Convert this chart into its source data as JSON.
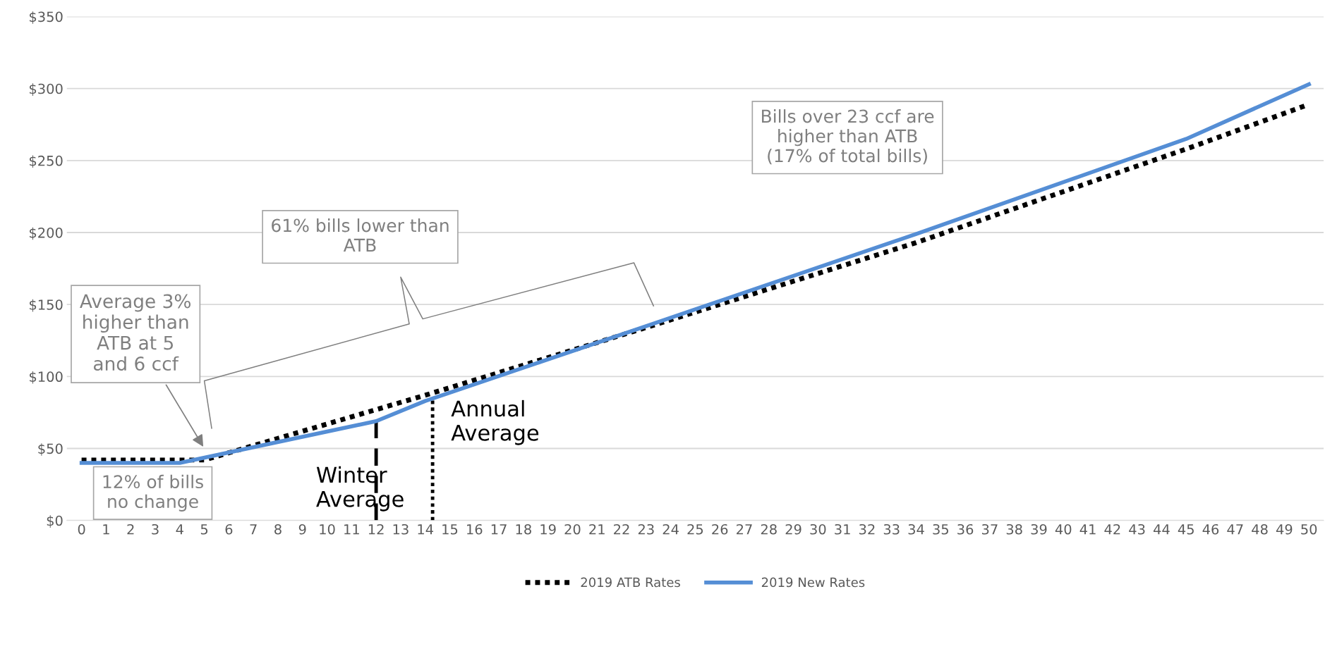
{
  "chart_data": {
    "type": "line",
    "series": [
      {
        "name": "2019 ATB Rates",
        "color": "#000000",
        "line_style": "dotted",
        "x": [
          0,
          5,
          8,
          12,
          14,
          23,
          34,
          45,
          50
        ],
        "values": [
          42,
          42,
          57,
          77,
          87,
          134,
          193,
          258,
          289
        ]
      },
      {
        "name": "2019 New Rates",
        "color": "#558ed5",
        "line_style": "solid",
        "x": [
          0,
          4,
          12,
          14,
          23,
          34,
          45,
          50
        ],
        "values": [
          40,
          40,
          69,
          83,
          135,
          199,
          265,
          303
        ]
      }
    ],
    "xlim": [
      -0.6,
      50.6
    ],
    "xticks": [
      0,
      1,
      2,
      3,
      4,
      5,
      6,
      7,
      8,
      9,
      10,
      11,
      12,
      13,
      14,
      15,
      16,
      17,
      18,
      19,
      20,
      21,
      22,
      23,
      24,
      25,
      26,
      27,
      28,
      29,
      30,
      31,
      32,
      33,
      34,
      35,
      36,
      37,
      38,
      39,
      40,
      41,
      42,
      43,
      44,
      45,
      46,
      47,
      48,
      49,
      50
    ],
    "ylim": [
      0,
      350
    ],
    "yticks": [
      {
        "value": 0,
        "label": "$0"
      },
      {
        "value": 50,
        "label": "$50"
      },
      {
        "value": 100,
        "label": "$100"
      },
      {
        "value": 150,
        "label": "$150"
      },
      {
        "value": 200,
        "label": "$200"
      },
      {
        "value": 250,
        "label": "$250"
      },
      {
        "value": 300,
        "label": "$300"
      },
      {
        "value": 350,
        "label": "$350"
      }
    ],
    "grid": "y",
    "legend": "bottom",
    "marker": "none",
    "ref_lines": [
      {
        "axis": "x",
        "value": 12,
        "label": "Winter\nAverage",
        "color": "#000000",
        "line_style": "dashed"
      },
      {
        "axis": "x",
        "value": 14.3,
        "label": "Annual\nAverage",
        "color": "#000000",
        "line_style": "dotted"
      }
    ],
    "annotations": [
      "Average 3%\nhigher than\nATB at 5\nand 6 ccf",
      "61% bills lower than\nATB",
      "Bills over 23 ccf are\nhigher than ATB\n(17% of total bills)",
      "12% of bills\nno change"
    ]
  }
}
